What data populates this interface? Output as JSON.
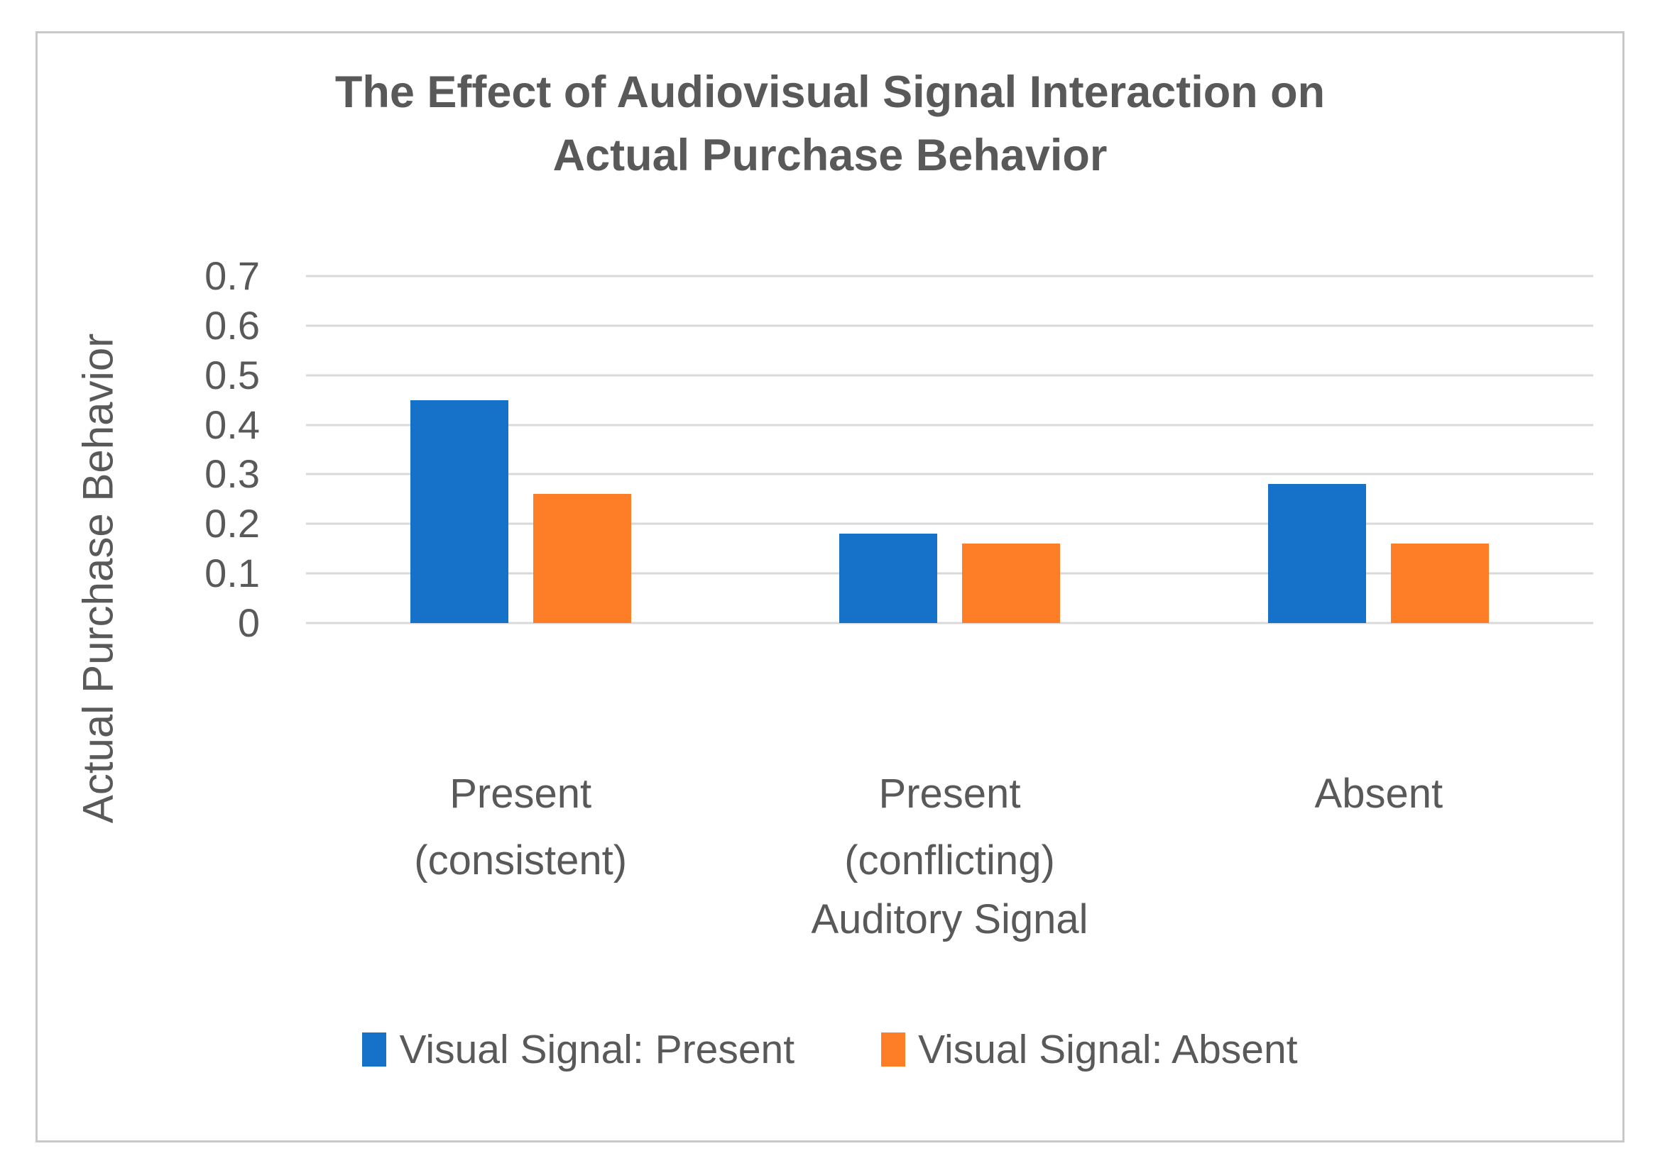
{
  "theme": {
    "text-color": "#595959",
    "gridline-color": "#d9d9d9",
    "frame-color": "#c8c8c8",
    "background": "#ffffff"
  },
  "chart_data": {
    "type": "bar",
    "title": "The Effect of Audiovisual Signal Interaction on Actual Purchase Behavior",
    "title_lines": [
      "The Effect of Audiovisual Signal Interaction on",
      "Actual Purchase Behavior"
    ],
    "xlabel": "Auditory Signal",
    "ylabel": "Actual Purchase Behavior",
    "ylim": [
      0,
      0.7
    ],
    "yticks": [
      0,
      0.1,
      0.2,
      0.3,
      0.4,
      0.5,
      0.6,
      0.7
    ],
    "grid": "horizontal",
    "legend_position": "bottom",
    "categories": [
      {
        "name": "Present (consistent)",
        "lines": [
          "Present",
          "(consistent)"
        ]
      },
      {
        "name": "Present (conflicting)",
        "lines": [
          "Present",
          "(conflicting)"
        ]
      },
      {
        "name": "Absent",
        "lines": [
          "Absent"
        ]
      }
    ],
    "series": [
      {
        "name": "Visual Signal: Present",
        "color": "#1572c8",
        "values": [
          0.45,
          0.18,
          0.28
        ]
      },
      {
        "name": "Visual Signal: Absent",
        "color": "#fd7e26",
        "values": [
          0.26,
          0.16,
          0.16
        ]
      }
    ]
  }
}
